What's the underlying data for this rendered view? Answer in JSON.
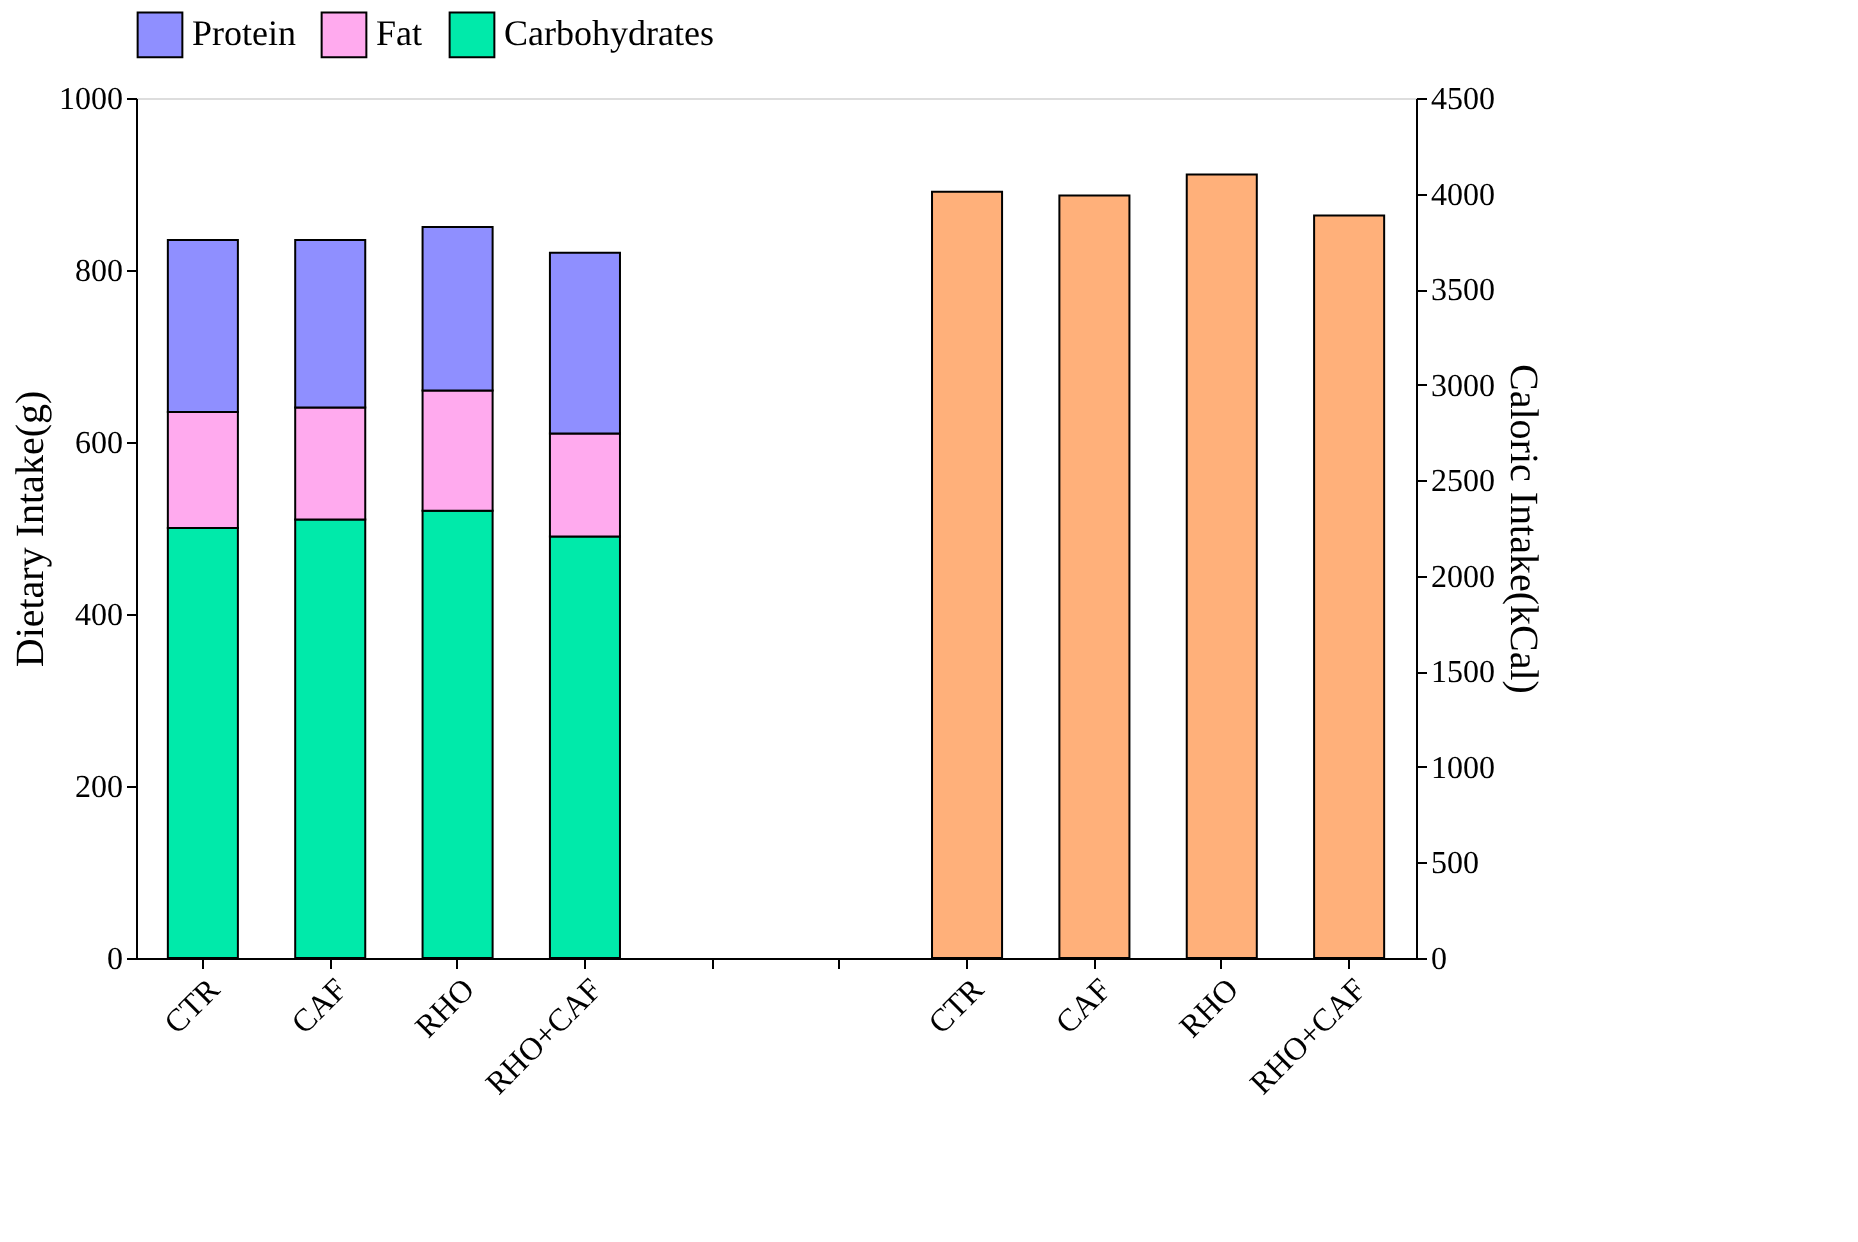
{
  "chart_data": {
    "type": "bar",
    "ylabel": "Dietary Intake(g)",
    "y2label": "Caloric Intake(kCal)",
    "categories": [
      "CTR",
      "CAF",
      "RHO",
      "RHO+CAF",
      null,
      null,
      "CTR",
      "CAF",
      "RHO",
      "RHO+CAF"
    ],
    "stacked": true,
    "series": [
      {
        "name": "Carbohydrates",
        "color": "#00eaaa",
        "values": [
          500,
          510,
          520,
          490,
          null,
          null,
          null,
          null,
          null,
          null
        ]
      },
      {
        "name": "Fat",
        "color": "#ffaaee",
        "values": [
          135,
          130,
          140,
          120,
          null,
          null,
          null,
          null,
          null,
          null
        ]
      },
      {
        "name": "Protein",
        "color": "#8f8fff",
        "values": [
          200,
          195,
          190,
          210,
          null,
          null,
          null,
          null,
          null,
          null
        ]
      },
      {
        "color": "#ffb07a",
        "axis": "y2",
        "values": [
          null,
          null,
          null,
          null,
          null,
          null,
          4010,
          3990,
          4100,
          3885
        ]
      }
    ],
    "ylim": [
      0,
      1000
    ],
    "yticks": [
      0,
      200,
      400,
      600,
      800,
      1000
    ],
    "y2lim": [
      0,
      4500
    ],
    "y2ticks": [
      0,
      500,
      1000,
      1500,
      2000,
      2500,
      3000,
      3500,
      4000,
      4500
    ],
    "grid": false,
    "legend": "top"
  }
}
